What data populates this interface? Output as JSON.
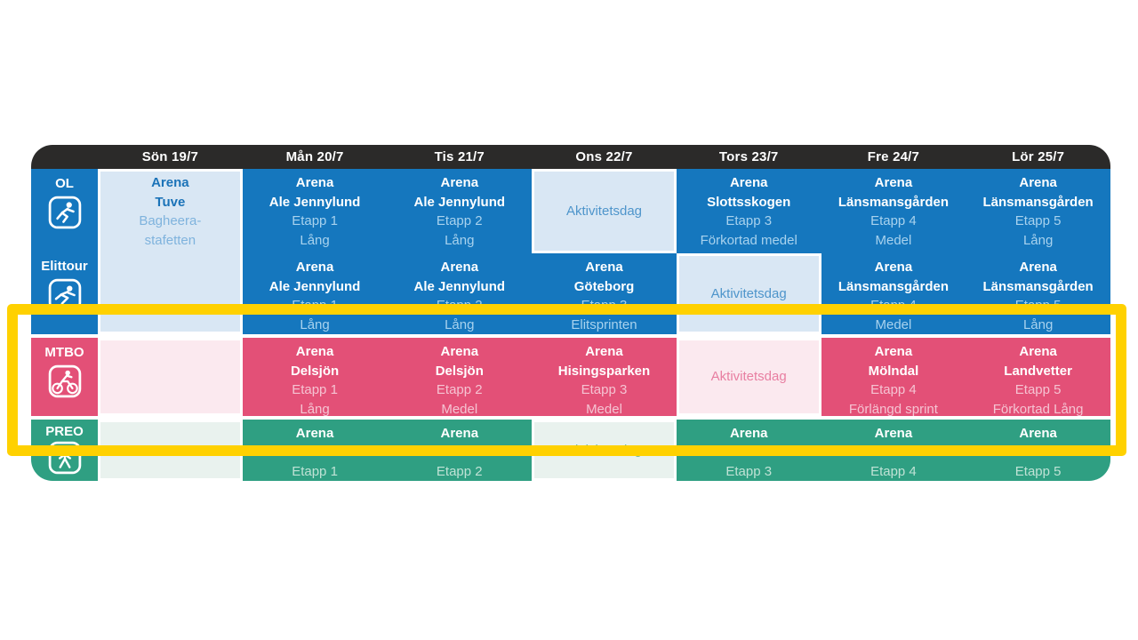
{
  "header": {
    "days": [
      "Sön 19/7",
      "Mån 20/7",
      "Tis 21/7",
      "Ons 22/7",
      "Tors 23/7",
      "Fre 24/7",
      "Lör 25/7"
    ]
  },
  "sections": [
    {
      "label": "OL",
      "icon": "runner-icon",
      "cells": [
        {
          "day": "Sön 19/7",
          "variant": "light",
          "lines": [
            {
              "t": "Arena",
              "c": "bd"
            },
            {
              "t": "Tuve",
              "c": "bd"
            },
            {
              "t": "Bagheera-",
              "c": "sd"
            },
            {
              "t": "stafetten",
              "c": "sd"
            }
          ]
        },
        {
          "day": "Mån 20/7",
          "variant": "solid",
          "lines": [
            {
              "t": "Arena",
              "c": "b"
            },
            {
              "t": "Ale Jennylund",
              "c": "b"
            },
            {
              "t": "Etapp 1",
              "c": "d"
            },
            {
              "t": "Lång",
              "c": "d"
            }
          ]
        },
        {
          "day": "Tis 21/7",
          "variant": "solid",
          "lines": [
            {
              "t": "Arena",
              "c": "b"
            },
            {
              "t": "Ale Jennylund",
              "c": "b"
            },
            {
              "t": "Etapp 2",
              "c": "d"
            },
            {
              "t": "Lång",
              "c": "d"
            }
          ]
        },
        {
          "day": "Ons 22/7",
          "variant": "light",
          "lines": [
            {
              "t": "Aktivitetsdag",
              "c": "akt"
            }
          ]
        },
        {
          "day": "Tors 23/7",
          "variant": "solid",
          "lines": [
            {
              "t": "Arena",
              "c": "b"
            },
            {
              "t": "Slottsskogen",
              "c": "b"
            },
            {
              "t": "Etapp 3",
              "c": "d"
            },
            {
              "t": "Förkortad medel",
              "c": "d"
            }
          ]
        },
        {
          "day": "Fre 24/7",
          "variant": "solid",
          "lines": [
            {
              "t": "Arena",
              "c": "b"
            },
            {
              "t": "Länsmansgården",
              "c": "b"
            },
            {
              "t": "Etapp 4",
              "c": "d"
            },
            {
              "t": "Medel",
              "c": "d"
            }
          ]
        },
        {
          "day": "Lör 25/7",
          "variant": "solid",
          "lines": [
            {
              "t": "Arena",
              "c": "b"
            },
            {
              "t": "Länsmansgården",
              "c": "b"
            },
            {
              "t": "Etapp 5",
              "c": "d"
            },
            {
              "t": "Lång",
              "c": "d"
            }
          ]
        }
      ]
    },
    {
      "label": "Elittour",
      "icon": "sprinter-icon",
      "cells": [
        null,
        {
          "day": "Mån 20/7",
          "variant": "solid",
          "lines": [
            {
              "t": "Arena",
              "c": "b"
            },
            {
              "t": "Ale Jennylund",
              "c": "b"
            },
            {
              "t": "Etapp 1",
              "c": "d"
            },
            {
              "t": "Lång",
              "c": "d"
            }
          ]
        },
        {
          "day": "Tis 21/7",
          "variant": "solid",
          "lines": [
            {
              "t": "Arena",
              "c": "b"
            },
            {
              "t": "Ale Jennylund",
              "c": "b"
            },
            {
              "t": "Etapp 2",
              "c": "d"
            },
            {
              "t": "Lång",
              "c": "d"
            }
          ]
        },
        {
          "day": "Ons 22/7",
          "variant": "solid",
          "lines": [
            {
              "t": "Arena",
              "c": "b"
            },
            {
              "t": "Göteborg",
              "c": "b"
            },
            {
              "t": "Etapp 3",
              "c": "d"
            },
            {
              "t": "Elitsprinten",
              "c": "d"
            }
          ]
        },
        {
          "day": "Tors 23/7",
          "variant": "light",
          "lines": [
            {
              "t": "Aktivitetsdag",
              "c": "akt"
            }
          ]
        },
        {
          "day": "Fre 24/7",
          "variant": "solid",
          "lines": [
            {
              "t": "Arena",
              "c": "b"
            },
            {
              "t": "Länsmansgården",
              "c": "b"
            },
            {
              "t": "Etapp 4",
              "c": "d"
            },
            {
              "t": "Medel",
              "c": "d"
            }
          ]
        },
        {
          "day": "Lör 25/7",
          "variant": "solid",
          "lines": [
            {
              "t": "Arena",
              "c": "b"
            },
            {
              "t": "Länsmansgården",
              "c": "b"
            },
            {
              "t": "Etapp 5",
              "c": "d"
            },
            {
              "t": "Lång",
              "c": "d"
            }
          ]
        }
      ]
    },
    {
      "label": "MTBO",
      "icon": "cyclist-icon",
      "cells": [
        {
          "day": "Sön 19/7",
          "variant": "light",
          "lines": []
        },
        {
          "day": "Mån 20/7",
          "variant": "solid",
          "lines": [
            {
              "t": "Arena",
              "c": "b"
            },
            {
              "t": "Delsjön",
              "c": "b"
            },
            {
              "t": "Etapp 1",
              "c": "d"
            },
            {
              "t": "Lång",
              "c": "d"
            }
          ]
        },
        {
          "day": "Tis 21/7",
          "variant": "solid",
          "lines": [
            {
              "t": "Arena",
              "c": "b"
            },
            {
              "t": "Delsjön",
              "c": "b"
            },
            {
              "t": "Etapp 2",
              "c": "d"
            },
            {
              "t": "Medel",
              "c": "d"
            }
          ]
        },
        {
          "day": "Ons 22/7",
          "variant": "solid",
          "lines": [
            {
              "t": "Arena",
              "c": "b"
            },
            {
              "t": "Hisingsparken",
              "c": "b"
            },
            {
              "t": "Etapp 3",
              "c": "d"
            },
            {
              "t": "Medel",
              "c": "d"
            }
          ]
        },
        {
          "day": "Tors 23/7",
          "variant": "light",
          "lines": [
            {
              "t": "Aktivitetsdag",
              "c": "akt"
            }
          ]
        },
        {
          "day": "Fre 24/7",
          "variant": "solid",
          "lines": [
            {
              "t": "Arena",
              "c": "b"
            },
            {
              "t": "Mölndal",
              "c": "b"
            },
            {
              "t": "Etapp 4",
              "c": "d"
            },
            {
              "t": "Förlängd sprint",
              "c": "d"
            }
          ]
        },
        {
          "day": "Lör 25/7",
          "variant": "solid",
          "lines": [
            {
              "t": "Arena",
              "c": "b"
            },
            {
              "t": "Landvetter",
              "c": "b"
            },
            {
              "t": "Etapp 5",
              "c": "d"
            },
            {
              "t": "Förkortad Lång",
              "c": "d"
            }
          ]
        }
      ]
    },
    {
      "label": "PREO",
      "icon": "standing-person-icon",
      "cells": [
        {
          "day": "Sön 19/7",
          "variant": "light",
          "lines": []
        },
        {
          "day": "Mån 20/7",
          "variant": "solid",
          "lines": [
            {
              "t": "Arena",
              "c": "b"
            },
            {
              "t": "",
              "c": "b"
            },
            {
              "t": "Etapp 1",
              "c": "d"
            }
          ]
        },
        {
          "day": "Tis 21/7",
          "variant": "solid",
          "lines": [
            {
              "t": "Arena",
              "c": "b"
            },
            {
              "t": "",
              "c": "b"
            },
            {
              "t": "Etapp 2",
              "c": "d"
            }
          ]
        },
        {
          "day": "Ons 22/7",
          "variant": "light",
          "lines": [
            {
              "t": "Aktivitetsdag",
              "c": "akt"
            }
          ]
        },
        {
          "day": "Tors 23/7",
          "variant": "solid",
          "lines": [
            {
              "t": "Arena",
              "c": "b"
            },
            {
              "t": "",
              "c": "b"
            },
            {
              "t": "Etapp 3",
              "c": "d"
            }
          ]
        },
        {
          "day": "Fre 24/7",
          "variant": "solid",
          "lines": [
            {
              "t": "Arena",
              "c": "b"
            },
            {
              "t": "",
              "c": "b"
            },
            {
              "t": "Etapp 4",
              "c": "d"
            }
          ]
        },
        {
          "day": "Lör 25/7",
          "variant": "solid",
          "lines": [
            {
              "t": "Arena",
              "c": "b"
            },
            {
              "t": "",
              "c": "b"
            },
            {
              "t": "Etapp 5",
              "c": "d"
            }
          ]
        }
      ]
    }
  ],
  "colors": {
    "blue": "#1577BE",
    "light_blue": "#D9E7F4",
    "pink": "#E35077",
    "light_pink": "#FBE9EF",
    "green": "#2F9F82",
    "light_green": "#E9F2EE",
    "header_dark": "#2B2A29",
    "highlight_yellow": "#FFD100"
  }
}
